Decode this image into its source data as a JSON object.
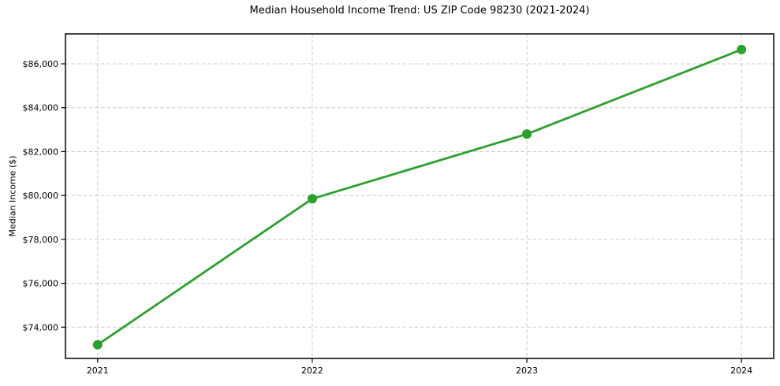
{
  "chart_data": {
    "type": "line",
    "title": "Median Household Income Trend: US ZIP Code 98230 (2021-2024)",
    "xlabel": "",
    "ylabel": "Median Income ($)",
    "x": [
      2021,
      2022,
      2023,
      2024
    ],
    "series": [
      {
        "name": "Median Household Income",
        "values": [
          73200,
          79850,
          82800,
          86650
        ]
      }
    ],
    "xticks": {
      "values": [
        2021,
        2022,
        2023,
        2024
      ],
      "labels": [
        "2021",
        "2022",
        "2023",
        "2024"
      ]
    },
    "yticks": {
      "values": [
        74000,
        76000,
        78000,
        80000,
        82000,
        84000,
        86000
      ],
      "labels": [
        "$74,000",
        "$76,000",
        "$78,000",
        "$80,000",
        "$82,000",
        "$84,000",
        "$86,000"
      ]
    },
    "xlim": [
      2020.85,
      2024.15
    ],
    "ylim": [
      72575,
      87365
    ],
    "grid": true,
    "grid_style": "dashed",
    "legend": "none",
    "line_color": "#2ca02c",
    "marker_color": "#2ca02c",
    "grid_color": "#cccccc",
    "axis_color": "#000000",
    "text_color": "#000000",
    "background_color": "#ffffff"
  }
}
